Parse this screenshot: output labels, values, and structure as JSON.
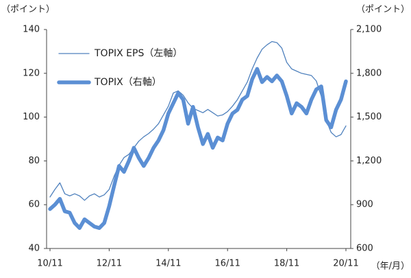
{
  "chart_data": {
    "type": "line",
    "y_label": "（ポイント）",
    "y2_label": "（ポイント）",
    "x_label": "（年/月）",
    "categories": [
      "10/11",
      null,
      null,
      null,
      null,
      null,
      null,
      null,
      null,
      null,
      null,
      null,
      "12/11",
      null,
      null,
      null,
      null,
      null,
      null,
      null,
      null,
      null,
      null,
      null,
      "14/11",
      null,
      null,
      null,
      null,
      null,
      null,
      null,
      null,
      null,
      null,
      null,
      "16/11",
      null,
      null,
      null,
      null,
      null,
      null,
      null,
      null,
      null,
      null,
      null,
      "18/11",
      null,
      null,
      null,
      null,
      null,
      null,
      null,
      null,
      null,
      null,
      null,
      "20/11"
    ],
    "series": [
      {
        "name": "TOPIX  EPS（左軸）",
        "color": "#4f81bd",
        "width": 1.3,
        "values": [
          63.5,
          67,
          70,
          65,
          64,
          65,
          64,
          62,
          64,
          65,
          63.5,
          64.5,
          67,
          73,
          78,
          81.5,
          83,
          86,
          89,
          91,
          92.5,
          94.5,
          97,
          101,
          105,
          111,
          112,
          110,
          106.5,
          104,
          103,
          102,
          103.5,
          102,
          100.5,
          101,
          102.5,
          105,
          108,
          112,
          116,
          122,
          127,
          131,
          133,
          134.5,
          134,
          131.5,
          125,
          122,
          121,
          120,
          119.5,
          119,
          116.5,
          109.5,
          98.5,
          93,
          91,
          92,
          96
        ]
      },
      {
        "name": "TOPIX（右軸）",
        "color": "#5b8fd4",
        "width": 5.5,
        "axis": "y2",
        "values": [
          870,
          900,
          940,
          855,
          845,
          775,
          740,
          800,
          775,
          750,
          740,
          775,
          890,
          1030,
          1165,
          1125,
          1200,
          1290,
          1220,
          1165,
          1220,
          1290,
          1340,
          1410,
          1525,
          1595,
          1665,
          1620,
          1455,
          1570,
          1430,
          1315,
          1385,
          1290,
          1360,
          1340,
          1455,
          1525,
          1550,
          1620,
          1645,
          1760,
          1830,
          1740,
          1775,
          1745,
          1785,
          1745,
          1645,
          1525,
          1595,
          1570,
          1525,
          1620,
          1690,
          1710,
          1480,
          1430,
          1550,
          1620,
          1745
        ]
      }
    ],
    "ylim": [
      40,
      140
    ],
    "yticks": [
      40,
      60,
      80,
      100,
      120,
      140
    ],
    "y2lim": [
      600,
      2100
    ],
    "y2ticks": [
      600,
      900,
      {
        "value": 1200,
        "label": "1,200"
      },
      {
        "value": 1500,
        "label": "1,500"
      },
      {
        "value": 1800,
        "label": "1,800"
      },
      {
        "value": 2100,
        "label": "2,100"
      }
    ],
    "grid": false,
    "legend": "upper left"
  }
}
